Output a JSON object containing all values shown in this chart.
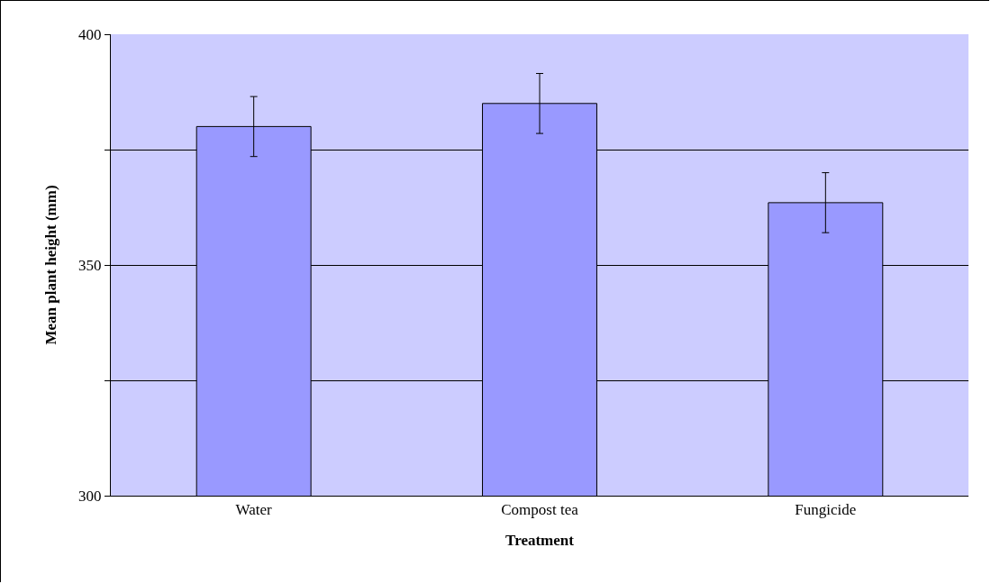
{
  "chart_data": {
    "type": "bar",
    "xlabel": "Treatment",
    "ylabel": "Mean plant height (mm)",
    "categories": [
      "Water",
      "Compost tea",
      "Fungicide"
    ],
    "values": [
      380,
      385,
      363.5
    ],
    "errors": [
      6.5,
      6.5,
      6.5
    ],
    "color": "#9999ff",
    "ylim": [
      300,
      400
    ],
    "yticks": [
      300,
      {
        "value": 325,
        "label": null
      },
      350,
      {
        "value": 375,
        "label": null
      },
      400
    ],
    "grid": "y"
  }
}
